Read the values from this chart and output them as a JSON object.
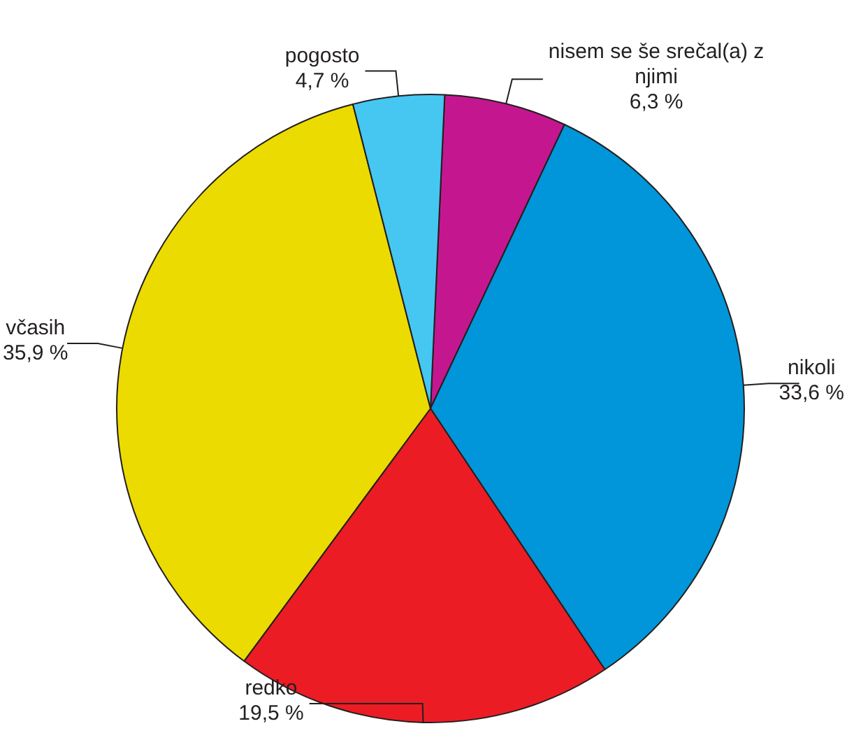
{
  "chart_data": {
    "type": "pie",
    "categories": [
      "nisem se še srečal(a) z njimi",
      "nikoli",
      "redko",
      "včasih",
      "pogosto"
    ],
    "values": [
      6.3,
      33.6,
      19.5,
      35.9,
      4.7
    ],
    "value_labels": [
      "6,3 %",
      "33,6 %",
      "19,5 %",
      "35,9 %",
      "4,7 %"
    ],
    "colors": [
      "#c4178f",
      "#0096d9",
      "#ec1c24",
      "#ecdb00",
      "#45c7f2"
    ],
    "legend": false
  }
}
